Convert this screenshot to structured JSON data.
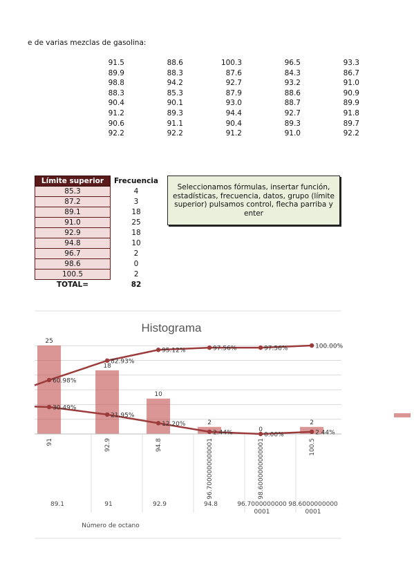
{
  "intro_text": "e de varias mezclas de gasolina:",
  "raw_data": [
    [
      "91.5",
      "88.6",
      "100.3",
      "96.5",
      "93.3"
    ],
    [
      "89.9",
      "88.3",
      "87.6",
      "84.3",
      "86.7"
    ],
    [
      "98.8",
      "94.2",
      "92.7",
      "93.2",
      "91.0"
    ],
    [
      "88.3",
      "85.3",
      "87.9",
      "88.6",
      "90.9"
    ],
    [
      "90.4",
      "90.1",
      "93.0",
      "88.7",
      "89.9"
    ],
    [
      "91.2",
      "89.3",
      "94.4",
      "92.7",
      "91.8"
    ],
    [
      "90.6",
      "91.1",
      "90.4",
      "89.3",
      "89.7"
    ],
    [
      "92.2",
      "92.2",
      "91.2",
      "91.0",
      "92.2"
    ]
  ],
  "freq_table": {
    "header_limit": "Límite superior",
    "header_freq": "Frecuencia",
    "rows": [
      {
        "limit": "85.3",
        "freq": "4"
      },
      {
        "limit": "87.2",
        "freq": "3"
      },
      {
        "limit": "89.1",
        "freq": "18"
      },
      {
        "limit": "91.0",
        "freq": "25"
      },
      {
        "limit": "92.9",
        "freq": "18"
      },
      {
        "limit": "94.8",
        "freq": "10"
      },
      {
        "limit": "96.7",
        "freq": "2"
      },
      {
        "limit": "98.6",
        "freq": "0"
      },
      {
        "limit": "100.5",
        "freq": "2"
      }
    ],
    "total_label": "TOTAL=",
    "total_value": "82"
  },
  "note": "Seleccionamos fórmulas, insertar función, estadísticas, frecuencia, datos, grupo (límite superior) pulsamos control, flecha parriba y enter",
  "colors": {
    "header_bg": "#5b1a1a",
    "cell_bg": "#f2dcdb",
    "note_bg": "#eaf0dc",
    "bar": "#c0504d",
    "line": "#9c3b3b"
  },
  "chart_data": {
    "type": "bar",
    "title": "Histograma",
    "xlabel": "Número de octano",
    "ylabel": "",
    "categories": [
      "91",
      "92.9",
      "94.8",
      "96.7000000000001",
      "98.6000000000001",
      "100.5"
    ],
    "categories_secondary": [
      "89.1",
      "91",
      "92.9",
      "94.8",
      "96.7000000000\n0001",
      "98.6000000000\n0001"
    ],
    "ylim": [
      0,
      25
    ],
    "bar_series": {
      "values": [
        25,
        18,
        10,
        2,
        0,
        2
      ],
      "labels": [
        "25",
        "18",
        "10",
        "2",
        "0",
        "2"
      ]
    },
    "line_series": [
      {
        "values": [
          60.98,
          82.93,
          95.12,
          97.56,
          97.56,
          100.0
        ],
        "labels": [
          "60.98%",
          "82.93%",
          "95.12%",
          "97.56%",
          "97.56%",
          "100.00%"
        ],
        "lead_in_value": 55.0
      },
      {
        "values": [
          30.49,
          21.95,
          12.2,
          2.44,
          0.0,
          2.44
        ],
        "labels": [
          "30.49%",
          "21.95%",
          "12.20%",
          "2.44%",
          "0.00%",
          "2.44%"
        ],
        "lead_in_value": 31.0
      }
    ],
    "y2lim": [
      0,
      100
    ],
    "grid": true,
    "legend": "right"
  }
}
